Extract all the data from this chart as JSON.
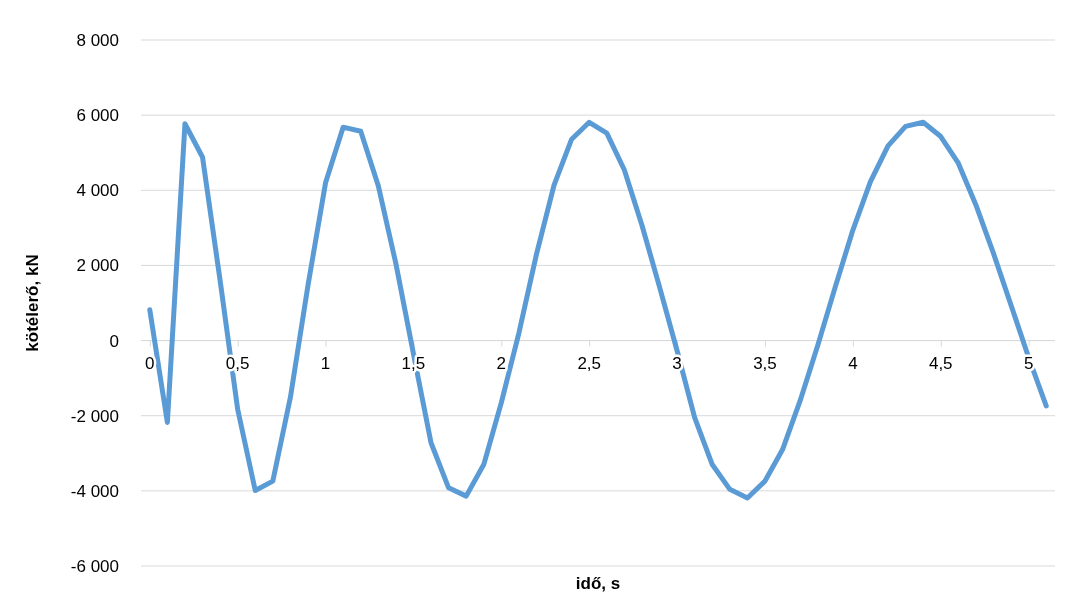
{
  "chart_data": {
    "type": "line",
    "xlabel": "idő, s",
    "ylabel": "kötélerő, kN",
    "x": [
      0,
      0.1,
      0.2,
      0.3,
      0.4,
      0.5,
      0.6,
      0.7,
      0.8,
      0.9,
      1,
      1.1,
      1.2,
      1.3,
      1.4,
      1.5,
      1.6,
      1.7,
      1.8,
      1.9,
      2,
      2.1,
      2.2,
      2.3,
      2.4,
      2.5,
      2.6,
      2.7,
      2.8,
      2.9,
      3,
      3.1,
      3.2,
      3.3,
      3.4,
      3.5,
      3.6,
      3.7,
      3.8,
      3.9,
      4,
      4.1,
      4.2,
      4.3,
      4.4,
      4.5,
      4.6,
      4.7,
      4.8,
      4.9,
      5,
      5.1
    ],
    "series": [
      {
        "color": "#5b9bd5",
        "values": [
          820,
          -2180,
          5770,
          4880,
          1600,
          -1830,
          -3990,
          -3740,
          -1510,
          1470,
          4200,
          5680,
          5570,
          4120,
          2050,
          -350,
          -2720,
          -3920,
          -4140,
          -3300,
          -1650,
          200,
          2300,
          4140,
          5360,
          5810,
          5520,
          4540,
          3070,
          1430,
          -270,
          -2050,
          -3300,
          -3960,
          -4190,
          -3740,
          -2900,
          -1600,
          -130,
          1430,
          2940,
          4230,
          5180,
          5700,
          5810,
          5430,
          4720,
          3610,
          2320,
          940,
          -450,
          -1740
        ]
      }
    ],
    "xlim": [
      -0.05,
      5.15
    ],
    "xticks": [
      0,
      {
        "value": 0.5,
        "label": "0,5"
      },
      1,
      {
        "value": 1.5,
        "label": "1,5"
      },
      2,
      {
        "value": 2.5,
        "label": "2,5"
      },
      3,
      {
        "value": 3.5,
        "label": "3,5"
      },
      4,
      {
        "value": 4.5,
        "label": "4,5"
      },
      5
    ],
    "ylim": [
      -6000,
      8000
    ],
    "yticks": [
      {
        "value": -6000,
        "label": "-6 000"
      },
      {
        "value": -4000,
        "label": "-4 000"
      },
      {
        "value": -2000,
        "label": "-2 000"
      },
      0,
      {
        "value": 2000,
        "label": "2 000"
      },
      {
        "value": 4000,
        "label": "4 000"
      },
      {
        "value": 6000,
        "label": "6 000"
      },
      {
        "value": 8000,
        "label": "8 000"
      }
    ],
    "grid": "y",
    "marker": "none",
    "line_style": "solid"
  }
}
